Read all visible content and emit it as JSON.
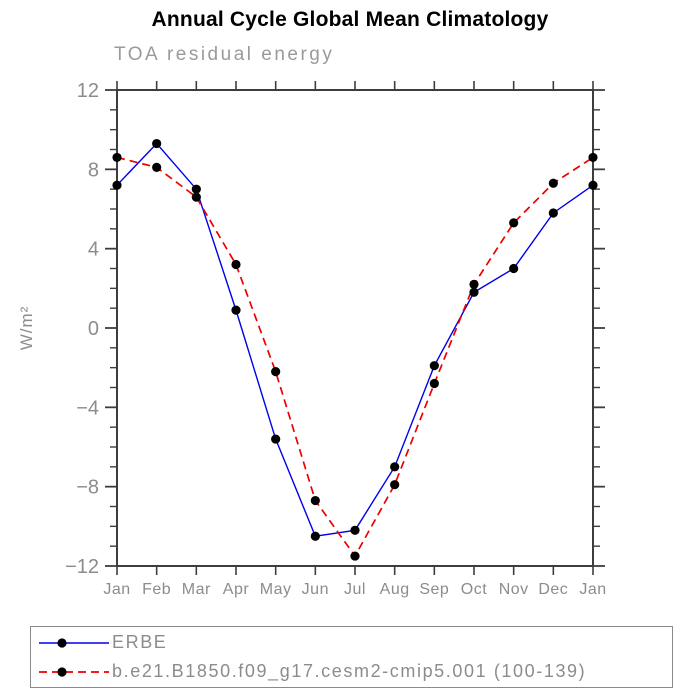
{
  "page": {
    "title": "Annual Cycle Global Mean Climatology",
    "subtitle": "TOA residual energy"
  },
  "chart_data": {
    "type": "line",
    "title": "Annual Cycle Global Mean Climatology",
    "subtitle": "TOA residual energy",
    "x": [
      "Jan",
      "Feb",
      "Mar",
      "Apr",
      "May",
      "Jun",
      "Jul",
      "Aug",
      "Sep",
      "Oct",
      "Nov",
      "Dec",
      "Jan"
    ],
    "series": [
      {
        "name": "ERBE",
        "color": "#0000ee",
        "line_style": "solid",
        "marker": "black-filled-circle",
        "values": [
          7.2,
          9.3,
          7.0,
          0.9,
          -5.6,
          -10.5,
          -10.2,
          -7.0,
          -1.9,
          1.8,
          3.0,
          5.8,
          7.2
        ]
      },
      {
        "name": "b.e21.B1850.f09_g17.cesm2-cmip5.001 (100-139)",
        "color": "#ee0000",
        "line_style": "dashed",
        "marker": "black-filled-circle",
        "values": [
          8.6,
          8.1,
          6.6,
          3.2,
          -2.2,
          -8.7,
          -11.5,
          -7.9,
          -2.8,
          2.2,
          5.3,
          7.3,
          8.6
        ]
      }
    ],
    "xlabel": "",
    "ylabel": "W/m²",
    "ylim": [
      -12,
      12
    ],
    "ytick_values": [
      12,
      8,
      4,
      0,
      -4,
      -8,
      -12
    ],
    "ytick_labels": [
      "12",
      "8",
      "4",
      "0",
      "−4",
      "−8",
      "−12"
    ],
    "minor_tick_step": 1,
    "grid": false,
    "legend_position": "bottom-left-box",
    "colors": {
      "marker": "#000000",
      "frame": "#3d3d3d",
      "axis_label_gray": "#8c8c8c",
      "subtitle_gray": "#9a9a9a",
      "erbe_blue": "#0000ee",
      "model_red": "#ee0000"
    }
  }
}
